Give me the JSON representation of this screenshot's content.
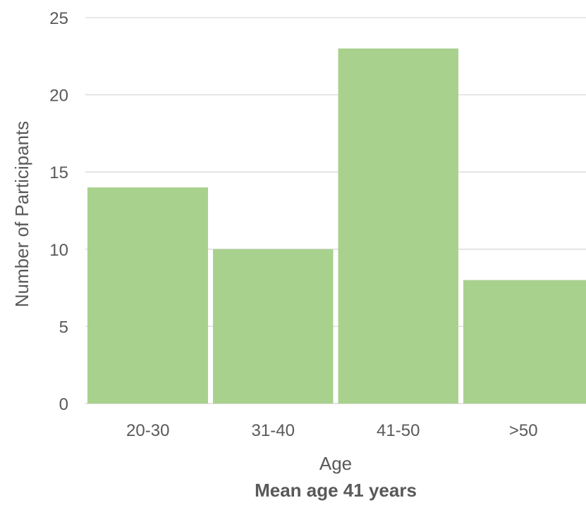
{
  "chart_data": {
    "type": "bar",
    "categories": [
      "20-30",
      "31-40",
      "41-50",
      ">50"
    ],
    "values": [
      14,
      10,
      23,
      8
    ],
    "xlabel": "Age",
    "ylabel": "Number of Participants",
    "subtitle": "Mean age 41 years",
    "ylim": [
      0,
      25
    ],
    "yticks": [
      "0",
      "5",
      "10",
      "15",
      "20",
      "25"
    ],
    "grid": true,
    "legend": "none",
    "colors": {
      "bar": "#a9d18e",
      "grid": "#d9d9d9",
      "text": "#595959"
    }
  }
}
